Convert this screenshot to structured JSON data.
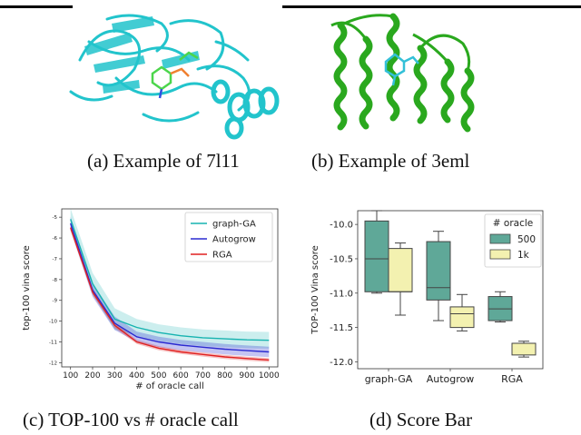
{
  "captions": {
    "a": "(a) Example of 7l11",
    "b": "(b) Example of 3eml",
    "c": "(c) TOP-100 vs # oracle call",
    "d": "(d) Score Bar"
  },
  "colors": {
    "protein_a": "#22c4cc",
    "protein_b": "#2aa81e",
    "graph_ga": "#17b3b0",
    "autogrow": "#2a2ad0",
    "rga": "#e02020",
    "box_500": "#5fa898",
    "box_1k": "#f3f1b0"
  },
  "chart_data": [
    {
      "type": "line",
      "ylabel": "top-100 vina score",
      "xlabel": "# of oracle call",
      "x": [
        100,
        200,
        300,
        400,
        500,
        600,
        700,
        800,
        900,
        1000
      ],
      "xticks": [
        "100",
        "200",
        "300",
        "400",
        "500",
        "600",
        "700",
        "800",
        "900",
        "1000"
      ],
      "yticks": [
        "-5",
        "-6",
        "-7",
        "-8",
        "-9",
        "-10",
        "-11",
        "-12"
      ],
      "ylim": [
        -4.6,
        -12.2
      ],
      "legend_position": "top-right",
      "series": [
        {
          "name": "graph-GA",
          "values": [
            -5.1,
            -8.2,
            -9.9,
            -10.3,
            -10.55,
            -10.7,
            -10.8,
            -10.85,
            -10.9,
            -10.92
          ],
          "band": 0.4
        },
        {
          "name": "Autogrow",
          "values": [
            -5.3,
            -8.5,
            -10.1,
            -10.75,
            -11.0,
            -11.15,
            -11.25,
            -11.35,
            -11.42,
            -11.48
          ],
          "band": 0.25
        },
        {
          "name": "RGA",
          "values": [
            -5.5,
            -8.6,
            -10.2,
            -11.0,
            -11.3,
            -11.48,
            -11.6,
            -11.72,
            -11.8,
            -11.87
          ],
          "band": 0.1
        }
      ]
    },
    {
      "type": "box",
      "ylabel": "TOP-100 Vina score",
      "categories": [
        "graph-GA",
        "Autogrow",
        "RGA"
      ],
      "yticks": [
        "-10.0",
        "-10.5",
        "-11.0",
        "-11.5",
        "-12.0"
      ],
      "ylim": [
        -9.8,
        -12.1
      ],
      "legend_title": "# oracle",
      "legend_position": "top-right",
      "series": [
        {
          "name": "500",
          "boxes": [
            {
              "min": -11.0,
              "q1": -10.98,
              "median": -10.5,
              "q3": -9.95,
              "max": -9.8
            },
            {
              "min": -11.4,
              "q1": -11.1,
              "median": -10.92,
              "q3": -10.25,
              "max": -10.1
            },
            {
              "min": -11.42,
              "q1": -11.4,
              "median": -11.23,
              "q3": -11.05,
              "max": -10.98
            }
          ]
        },
        {
          "name": "1k",
          "boxes": [
            {
              "min": -11.32,
              "q1": -10.98,
              "median": -10.98,
              "q3": -10.35,
              "max": -10.27
            },
            {
              "min": -11.55,
              "q1": -11.5,
              "median": -11.3,
              "q3": -11.2,
              "max": -11.02
            },
            {
              "min": -11.93,
              "q1": -11.9,
              "median": -11.73,
              "q3": -11.73,
              "max": -11.7
            }
          ]
        }
      ]
    }
  ]
}
